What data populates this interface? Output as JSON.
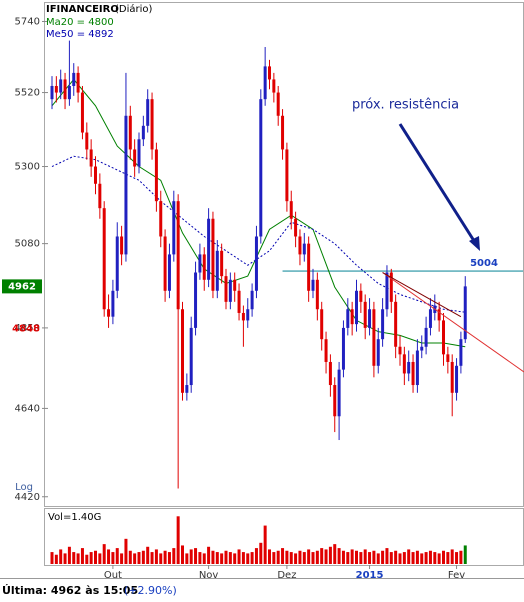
{
  "chart_data": {
    "type": "candlestick",
    "title": "IFINANCEIRO",
    "subtitle": "(Diário)",
    "log_scale": true,
    "log_label": "Log",
    "ylim": [
      4400,
      5770
    ],
    "yticks": [
      4420,
      4640,
      4850,
      5080,
      5300,
      5520,
      5740
    ],
    "up_color": "#2020c0",
    "down_color": "#e00000",
    "ohlc": [
      [
        5500,
        5570,
        5470,
        5540
      ],
      [
        5540,
        5570,
        5490,
        5520
      ],
      [
        5520,
        5590,
        5500,
        5560
      ],
      [
        5560,
        5580,
        5470,
        5500
      ],
      [
        5500,
        5680,
        5480,
        5540
      ],
      [
        5540,
        5610,
        5510,
        5580
      ],
      [
        5580,
        5600,
        5490,
        5520
      ],
      [
        5520,
        5540,
        5380,
        5400
      ],
      [
        5400,
        5430,
        5320,
        5350
      ],
      [
        5350,
        5380,
        5270,
        5300
      ],
      [
        5300,
        5330,
        5220,
        5250
      ],
      [
        5250,
        5280,
        5150,
        5180
      ],
      [
        5180,
        5200,
        4880,
        4900
      ],
      [
        4900,
        4940,
        4850,
        4880
      ],
      [
        4880,
        4980,
        4860,
        4950
      ],
      [
        4950,
        5140,
        4930,
        5100
      ],
      [
        5100,
        5130,
        5020,
        5050
      ],
      [
        5050,
        5580,
        5030,
        5450
      ],
      [
        5450,
        5480,
        5320,
        5350
      ],
      [
        5350,
        5380,
        5270,
        5300
      ],
      [
        5300,
        5400,
        5280,
        5380
      ],
      [
        5380,
        5450,
        5360,
        5420
      ],
      [
        5420,
        5530,
        5400,
        5500
      ],
      [
        5500,
        5520,
        5320,
        5350
      ],
      [
        5350,
        5370,
        5170,
        5200
      ],
      [
        5200,
        5230,
        5070,
        5100
      ],
      [
        5100,
        5120,
        4920,
        4950
      ],
      [
        4950,
        5080,
        4930,
        5050
      ],
      [
        5050,
        5230,
        5030,
        5200
      ],
      [
        5200,
        5220,
        4440,
        4900
      ],
      [
        4900,
        4920,
        4660,
        4680
      ],
      [
        4680,
        4730,
        4660,
        4700
      ],
      [
        4700,
        4880,
        4680,
        4850
      ],
      [
        4850,
        5030,
        4830,
        5000
      ],
      [
        5000,
        5080,
        4980,
        5050
      ],
      [
        5050,
        5070,
        4950,
        4980
      ],
      [
        4980,
        5180,
        4960,
        5150
      ],
      [
        5150,
        5170,
        4930,
        4950
      ],
      [
        4950,
        5090,
        4930,
        5060
      ],
      [
        5060,
        5080,
        4970,
        4990
      ],
      [
        4990,
        5010,
        4900,
        4920
      ],
      [
        4920,
        5000,
        4900,
        4980
      ],
      [
        4980,
        5000,
        4920,
        4950
      ],
      [
        4950,
        4970,
        4870,
        4890
      ],
      [
        4890,
        4910,
        4800,
        4870
      ],
      [
        4870,
        4930,
        4850,
        4900
      ],
      [
        4900,
        4970,
        4880,
        4950
      ],
      [
        4950,
        5130,
        4930,
        5100
      ],
      [
        5100,
        5530,
        5080,
        5500
      ],
      [
        5500,
        5660,
        5480,
        5600
      ],
      [
        5600,
        5620,
        5530,
        5560
      ],
      [
        5560,
        5580,
        5490,
        5520
      ],
      [
        5520,
        5540,
        5420,
        5450
      ],
      [
        5450,
        5470,
        5320,
        5350
      ],
      [
        5350,
        5370,
        5170,
        5200
      ],
      [
        5200,
        5230,
        5120,
        5150
      ],
      [
        5150,
        5170,
        5070,
        5100
      ],
      [
        5100,
        5120,
        5020,
        5050
      ],
      [
        5050,
        5110,
        5030,
        5080
      ],
      [
        5080,
        5100,
        4920,
        4950
      ],
      [
        4950,
        5010,
        4930,
        4980
      ],
      [
        4980,
        5000,
        4870,
        4900
      ],
      [
        4900,
        4920,
        4790,
        4820
      ],
      [
        4820,
        4840,
        4730,
        4760
      ],
      [
        4760,
        4780,
        4670,
        4700
      ],
      [
        4700,
        4720,
        4580,
        4620
      ],
      [
        4620,
        4760,
        4560,
        4740
      ],
      [
        4740,
        4870,
        4720,
        4850
      ],
      [
        4850,
        4930,
        4830,
        4900
      ],
      [
        4900,
        4920,
        4830,
        4860
      ],
      [
        4860,
        4980,
        4840,
        4950
      ],
      [
        4950,
        4970,
        4890,
        4920
      ],
      [
        4920,
        4940,
        4820,
        4850
      ],
      [
        4850,
        4930,
        4830,
        4900
      ],
      [
        4900,
        4920,
        4720,
        4750
      ],
      [
        4750,
        4850,
        4730,
        4820
      ],
      [
        4820,
        4930,
        4800,
        4900
      ],
      [
        4900,
        5020,
        4880,
        5000
      ],
      [
        5000,
        5010,
        4890,
        4920
      ],
      [
        4920,
        4940,
        4770,
        4800
      ],
      [
        4800,
        4830,
        4750,
        4780
      ],
      [
        4780,
        4800,
        4700,
        4730
      ],
      [
        4730,
        4790,
        4710,
        4760
      ],
      [
        4760,
        4780,
        4680,
        4700
      ],
      [
        4700,
        4820,
        4680,
        4790
      ],
      [
        4790,
        4830,
        4770,
        4800
      ],
      [
        4800,
        4880,
        4780,
        4850
      ],
      [
        4850,
        4930,
        4830,
        4900
      ],
      [
        4890,
        4940,
        4870,
        4910
      ],
      [
        4900,
        4920,
        4840,
        4870
      ],
      [
        4870,
        4890,
        4750,
        4780
      ],
      [
        4780,
        4800,
        4730,
        4760
      ],
      [
        4760,
        4780,
        4620,
        4680
      ],
      [
        4680,
        4770,
        4660,
        4750
      ],
      [
        4750,
        4840,
        4730,
        4820
      ],
      [
        4820,
        4990,
        4810,
        4962
      ]
    ],
    "x_labels": [
      {
        "index": 14,
        "label": "Out"
      },
      {
        "index": 36,
        "label": "Nov"
      },
      {
        "index": 54,
        "label": "Dez"
      },
      {
        "index": 73,
        "label": "2015"
      },
      {
        "index": 93,
        "label": "Fev"
      }
    ],
    "averages": [
      {
        "name": "Ma20",
        "value": 4800,
        "color": "#008000",
        "dashed": false,
        "x": [
          0,
          5,
          10,
          15,
          20,
          25,
          30,
          35,
          40,
          45,
          50,
          55,
          60,
          65,
          70,
          75,
          80,
          85,
          90,
          95
        ],
        "values": [
          5480,
          5560,
          5480,
          5360,
          5300,
          5260,
          5110,
          5010,
          4970,
          4990,
          5120,
          5160,
          5120,
          4960,
          4870,
          4840,
          4830,
          4810,
          4810,
          4800
        ]
      },
      {
        "name": "Me50",
        "value": 4892,
        "color": "#0000b0",
        "dashed": true,
        "x": [
          0,
          5,
          10,
          15,
          20,
          25,
          30,
          35,
          40,
          45,
          50,
          55,
          60,
          65,
          70,
          75,
          80,
          85,
          90,
          95
        ],
        "values": [
          5300,
          5330,
          5320,
          5290,
          5260,
          5200,
          5150,
          5100,
          5060,
          5020,
          5060,
          5140,
          5120,
          5080,
          5020,
          4970,
          4940,
          4920,
          4900,
          4892
        ]
      }
    ],
    "trendlines": [
      {
        "color": "#e03030",
        "x": [
          76,
          108.5
        ],
        "values": [
          5000,
          4734
        ]
      },
      {
        "color": "#800000",
        "x": [
          76,
          94
        ],
        "values": [
          5000,
          4880
        ]
      }
    ],
    "resistance": {
      "value": 5004,
      "from_index": 53,
      "color": "#2090a0"
    },
    "annotation": "próx. resistência",
    "last_price": 4962,
    "mark_price": 4848,
    "volume": {
      "label": "Vol=1.40G",
      "lim": [
        0,
        4
      ],
      "color": "#e00000",
      "last_color": "#008000",
      "values": [
        0.9,
        0.7,
        1.1,
        0.8,
        1.3,
        0.9,
        0.8,
        1.2,
        0.7,
        0.9,
        1.0,
        0.8,
        1.5,
        1.1,
        0.9,
        1.2,
        0.8,
        1.9,
        1.0,
        0.8,
        0.9,
        1.0,
        1.3,
        0.9,
        1.1,
        0.8,
        1.0,
        0.9,
        1.2,
        3.6,
        1.4,
        0.8,
        1.1,
        1.2,
        0.9,
        0.8,
        1.3,
        1.0,
        0.9,
        0.8,
        1.0,
        0.9,
        0.8,
        1.1,
        0.9,
        0.8,
        0.9,
        1.2,
        1.6,
        2.9,
        1.1,
        0.9,
        1.0,
        1.2,
        1.0,
        0.9,
        0.8,
        1.0,
        0.9,
        1.1,
        0.9,
        1.0,
        1.2,
        1.1,
        1.3,
        1.5,
        1.2,
        1.0,
        0.9,
        1.1,
        1.0,
        0.9,
        1.1,
        0.9,
        1.0,
        0.8,
        1.0,
        1.2,
        0.9,
        1.0,
        0.8,
        0.9,
        1.1,
        0.9,
        1.0,
        0.8,
        0.9,
        1.0,
        0.9,
        0.8,
        1.0,
        0.9,
        1.1,
        0.9,
        1.0,
        1.4
      ]
    },
    "status": {
      "label": "Última: 4962 às 15:05",
      "change": "(+2.90%)"
    }
  }
}
